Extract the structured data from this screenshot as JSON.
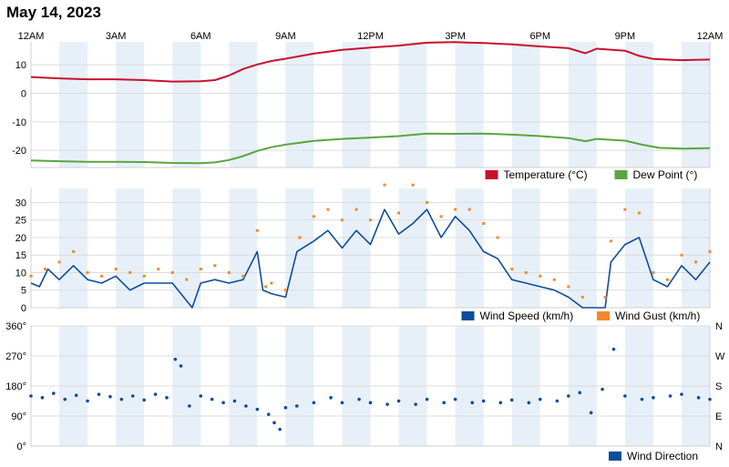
{
  "title": "May 14, 2023",
  "colors": {
    "temperature": "#c8102e",
    "dew_point": "#5aa540",
    "wind_speed": "#0d4d9b",
    "wind_gust": "#f4892b",
    "wind_direction": "#0d4d9b",
    "band": "#e7f0f8",
    "grid": "#dcdcdc"
  },
  "chart_data": [
    {
      "type": "line",
      "x_unit": "hour of day",
      "xlim": [
        0,
        24
      ],
      "x_tick_values": [
        0,
        3,
        6,
        9,
        12,
        15,
        18,
        21,
        24
      ],
      "x_tick_labels": [
        "12AM",
        "3AM",
        "6AM",
        "9AM",
        "12PM",
        "3PM",
        "6PM",
        "9PM",
        "12AM"
      ],
      "ylim": [
        -26,
        18
      ],
      "y_ticks": [
        10,
        0,
        -10,
        -20
      ],
      "legend_position": "bottom-right",
      "series": [
        {
          "name": "Temperature (°C)",
          "color": "#c8102e",
          "points": [
            [
              0,
              5.7
            ],
            [
              1,
              5.2
            ],
            [
              2,
              4.9
            ],
            [
              3,
              4.9
            ],
            [
              4,
              4.6
            ],
            [
              5,
              4.1
            ],
            [
              6,
              4.2
            ],
            [
              6.5,
              4.6
            ],
            [
              7,
              6.2
            ],
            [
              7.5,
              8.5
            ],
            [
              8,
              10.1
            ],
            [
              8.5,
              11.3
            ],
            [
              9,
              12.1
            ],
            [
              10,
              13.9
            ],
            [
              11,
              15.2
            ],
            [
              12,
              16.0
            ],
            [
              13,
              16.7
            ],
            [
              14,
              17.7
            ],
            [
              15,
              17.9
            ],
            [
              16,
              17.6
            ],
            [
              17,
              17.1
            ],
            [
              18,
              16.4
            ],
            [
              19,
              15.8
            ],
            [
              19.6,
              14.0
            ],
            [
              20,
              15.6
            ],
            [
              21,
              14.9
            ],
            [
              21.5,
              13.1
            ],
            [
              22,
              12.0
            ],
            [
              23,
              11.6
            ],
            [
              24,
              11.8
            ]
          ]
        },
        {
          "name": "Dew Point (°)",
          "color": "#5aa540",
          "points": [
            [
              0,
              -23.5
            ],
            [
              1,
              -23.8
            ],
            [
              2,
              -24.0
            ],
            [
              3,
              -24.0
            ],
            [
              4,
              -24.1
            ],
            [
              5,
              -24.4
            ],
            [
              6,
              -24.5
            ],
            [
              6.5,
              -24.2
            ],
            [
              7,
              -23.4
            ],
            [
              7.5,
              -22.0
            ],
            [
              8,
              -20.2
            ],
            [
              8.5,
              -18.9
            ],
            [
              9,
              -18.0
            ],
            [
              10,
              -16.7
            ],
            [
              11,
              -16.0
            ],
            [
              12,
              -15.5
            ],
            [
              13,
              -15.0
            ],
            [
              14,
              -14.1
            ],
            [
              15,
              -14.2
            ],
            [
              16,
              -14.1
            ],
            [
              17,
              -14.5
            ],
            [
              18,
              -15.0
            ],
            [
              19,
              -15.7
            ],
            [
              19.6,
              -16.8
            ],
            [
              20,
              -16.0
            ],
            [
              21,
              -16.6
            ],
            [
              21.6,
              -18.0
            ],
            [
              22.2,
              -19.1
            ],
            [
              23,
              -19.4
            ],
            [
              24,
              -19.2
            ]
          ]
        }
      ]
    },
    {
      "type": "line",
      "x_unit": "hour of day",
      "xlim": [
        0,
        24
      ],
      "ylim": [
        0,
        34
      ],
      "y_ticks": [
        0,
        5,
        10,
        15,
        20,
        25,
        30
      ],
      "legend_position": "bottom-right",
      "series": [
        {
          "name": "Wind Speed (km/h)",
          "color": "#0d4d9b",
          "points": [
            [
              0,
              7
            ],
            [
              0.3,
              6
            ],
            [
              0.6,
              11
            ],
            [
              1,
              8
            ],
            [
              1.5,
              12
            ],
            [
              2,
              8
            ],
            [
              2.5,
              7
            ],
            [
              3,
              9
            ],
            [
              3.5,
              5
            ],
            [
              4,
              7
            ],
            [
              4.5,
              7
            ],
            [
              5,
              7
            ],
            [
              5.5,
              2
            ],
            [
              5.7,
              0
            ],
            [
              6,
              7
            ],
            [
              6.5,
              8
            ],
            [
              7,
              7
            ],
            [
              7.5,
              8
            ],
            [
              8,
              16
            ],
            [
              8.2,
              5
            ],
            [
              8.5,
              4
            ],
            [
              9,
              3
            ],
            [
              9.4,
              16
            ],
            [
              10,
              19
            ],
            [
              10.5,
              22
            ],
            [
              11,
              17
            ],
            [
              11.5,
              22
            ],
            [
              12,
              18
            ],
            [
              12.5,
              28
            ],
            [
              13,
              21
            ],
            [
              13.5,
              24
            ],
            [
              14,
              28
            ],
            [
              14.5,
              20
            ],
            [
              15,
              26
            ],
            [
              15.5,
              22
            ],
            [
              16,
              16
            ],
            [
              16.5,
              14
            ],
            [
              17,
              8
            ],
            [
              17.5,
              7
            ],
            [
              18,
              6
            ],
            [
              18.5,
              5
            ],
            [
              19,
              3
            ],
            [
              19.5,
              0
            ],
            [
              20.3,
              0
            ],
            [
              20.5,
              13
            ],
            [
              21,
              18
            ],
            [
              21.5,
              20
            ],
            [
              22,
              8
            ],
            [
              22.5,
              6
            ],
            [
              23,
              12
            ],
            [
              23.5,
              8
            ],
            [
              24,
              13
            ]
          ]
        },
        {
          "name": "Wind Gust (km/h)",
          "color": "#f4892b",
          "points": [
            [
              0,
              9
            ],
            [
              0.5,
              11
            ],
            [
              1,
              13
            ],
            [
              1.5,
              16
            ],
            [
              2,
              10
            ],
            [
              2.5,
              9
            ],
            [
              3,
              11
            ],
            [
              3.5,
              10
            ],
            [
              4,
              9
            ],
            [
              4.5,
              11
            ],
            [
              5,
              10
            ],
            [
              5.5,
              8
            ],
            [
              6,
              11
            ],
            [
              6.5,
              12
            ],
            [
              7,
              10
            ],
            [
              7.5,
              9
            ],
            [
              8,
              22
            ],
            [
              8.3,
              6
            ],
            [
              8.5,
              7
            ],
            [
              9,
              5
            ],
            [
              9.5,
              20
            ],
            [
              10,
              26
            ],
            [
              10.5,
              28
            ],
            [
              11,
              25
            ],
            [
              11.5,
              28
            ],
            [
              12,
              25
            ],
            [
              12.5,
              35
            ],
            [
              13,
              27
            ],
            [
              13.5,
              35
            ],
            [
              14,
              30
            ],
            [
              14.5,
              26
            ],
            [
              15,
              28
            ],
            [
              15.5,
              28
            ],
            [
              16,
              24
            ],
            [
              16.5,
              20
            ],
            [
              17,
              11
            ],
            [
              17.5,
              10
            ],
            [
              18,
              9
            ],
            [
              18.5,
              8
            ],
            [
              19,
              6
            ],
            [
              19.5,
              3
            ],
            [
              20.3,
              3
            ],
            [
              20.5,
              19
            ],
            [
              21,
              28
            ],
            [
              21.5,
              27
            ],
            [
              22,
              10
            ],
            [
              22.5,
              8
            ],
            [
              23,
              15
            ],
            [
              23.5,
              13
            ],
            [
              24,
              16
            ]
          ]
        }
      ]
    },
    {
      "type": "scatter",
      "x_unit": "hour of day",
      "xlim": [
        0,
        24
      ],
      "ylim": [
        0,
        360
      ],
      "y_ticks": [
        0,
        90,
        180,
        270,
        360
      ],
      "y_tick_labels": [
        "0°",
        "90°",
        "180°",
        "270°",
        "360°"
      ],
      "y_right_ticks": [
        0,
        90,
        180,
        270,
        360
      ],
      "y_right_labels": [
        "N",
        "E",
        "S",
        "W",
        "N"
      ],
      "legend_position": "bottom-right",
      "series": [
        {
          "name": "Wind Direction",
          "color": "#0d4d9b",
          "points": [
            [
              0,
              150
            ],
            [
              0.4,
              145
            ],
            [
              0.8,
              158
            ],
            [
              1.2,
              140
            ],
            [
              1.6,
              152
            ],
            [
              2,
              135
            ],
            [
              2.4,
              155
            ],
            [
              2.8,
              148
            ],
            [
              3.2,
              140
            ],
            [
              3.6,
              150
            ],
            [
              4,
              138
            ],
            [
              4.4,
              155
            ],
            [
              4.8,
              145
            ],
            [
              5.1,
              260
            ],
            [
              5.3,
              240
            ],
            [
              5.6,
              120
            ],
            [
              6,
              150
            ],
            [
              6.4,
              140
            ],
            [
              6.8,
              130
            ],
            [
              7.2,
              135
            ],
            [
              7.6,
              120
            ],
            [
              8,
              110
            ],
            [
              8.4,
              95
            ],
            [
              8.6,
              70
            ],
            [
              8.8,
              50
            ],
            [
              9,
              115
            ],
            [
              9.4,
              120
            ],
            [
              10,
              130
            ],
            [
              10.6,
              145
            ],
            [
              11,
              130
            ],
            [
              11.6,
              140
            ],
            [
              12,
              130
            ],
            [
              12.6,
              125
            ],
            [
              13,
              135
            ],
            [
              13.6,
              125
            ],
            [
              14,
              140
            ],
            [
              14.6,
              130
            ],
            [
              15,
              140
            ],
            [
              15.6,
              130
            ],
            [
              16,
              135
            ],
            [
              16.6,
              130
            ],
            [
              17,
              138
            ],
            [
              17.6,
              130
            ],
            [
              18,
              140
            ],
            [
              18.6,
              135
            ],
            [
              19,
              150
            ],
            [
              19.4,
              160
            ],
            [
              19.8,
              100
            ],
            [
              20.2,
              170
            ],
            [
              20.6,
              290
            ],
            [
              21,
              150
            ],
            [
              21.6,
              140
            ],
            [
              22,
              145
            ],
            [
              22.6,
              150
            ],
            [
              23,
              155
            ],
            [
              23.6,
              145
            ],
            [
              24,
              140
            ]
          ]
        }
      ]
    }
  ]
}
